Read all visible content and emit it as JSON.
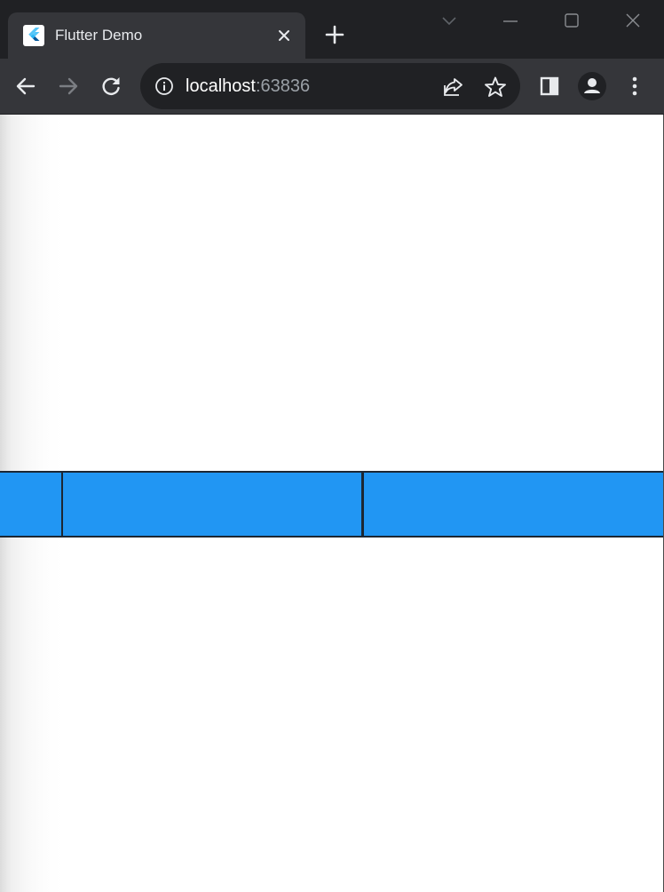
{
  "browser": {
    "tab": {
      "title": "Flutter Demo",
      "favicon": "flutter-logo-icon"
    },
    "window_controls": [
      "tab-search-icon",
      "minimize-icon",
      "maximize-icon",
      "close-icon"
    ],
    "address_bar": {
      "host": "localhost",
      "port": ":63836"
    },
    "toolbar_icons": [
      "back-arrow-icon",
      "forward-arrow-icon",
      "reload-icon",
      "info-icon",
      "share-icon",
      "star-icon",
      "side-panel-icon",
      "profile-icon",
      "kebab-menu-icon"
    ],
    "colors": {
      "frame": "#202124",
      "toolbar": "#35363a"
    }
  },
  "content": {
    "tiles": [
      {
        "color": "#2196f3",
        "border": "#1c2733"
      },
      {
        "color": "#2196f3",
        "border": "#1c2733"
      },
      {
        "color": "#2196f3",
        "border": "#1c2733"
      }
    ],
    "background": "#ffffff"
  }
}
